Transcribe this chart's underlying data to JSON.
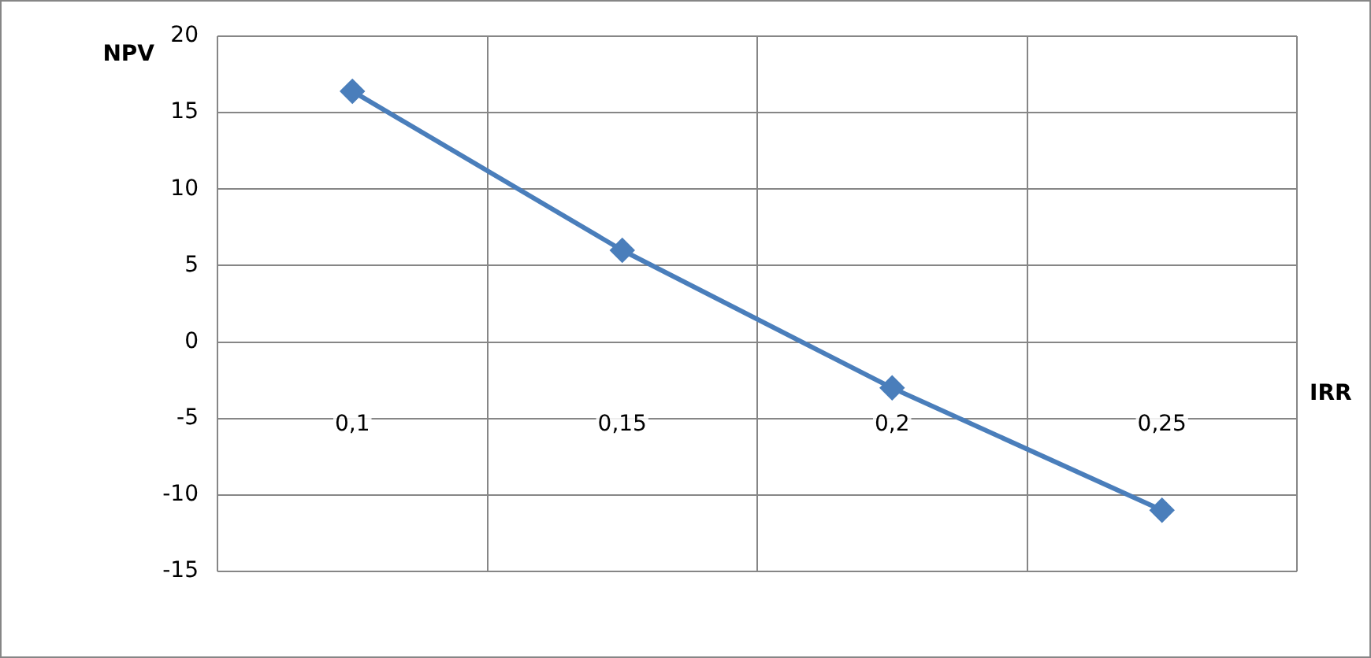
{
  "chart_data": {
    "type": "line",
    "xlabel": "IRR",
    "ylabel": "NPV",
    "categories": [
      "0,1",
      "0,15",
      "0,2",
      "0,25"
    ],
    "series": [
      {
        "color": "#4a7ebb",
        "values": [
          16.4,
          6,
          -3,
          -11
        ]
      }
    ],
    "ylim": [
      -15,
      20
    ],
    "yticks": [
      -15,
      -10,
      -5,
      0,
      5,
      10,
      15,
      20
    ],
    "grid": true,
    "legend": false,
    "marker": "diamond",
    "line_style": "solid"
  }
}
